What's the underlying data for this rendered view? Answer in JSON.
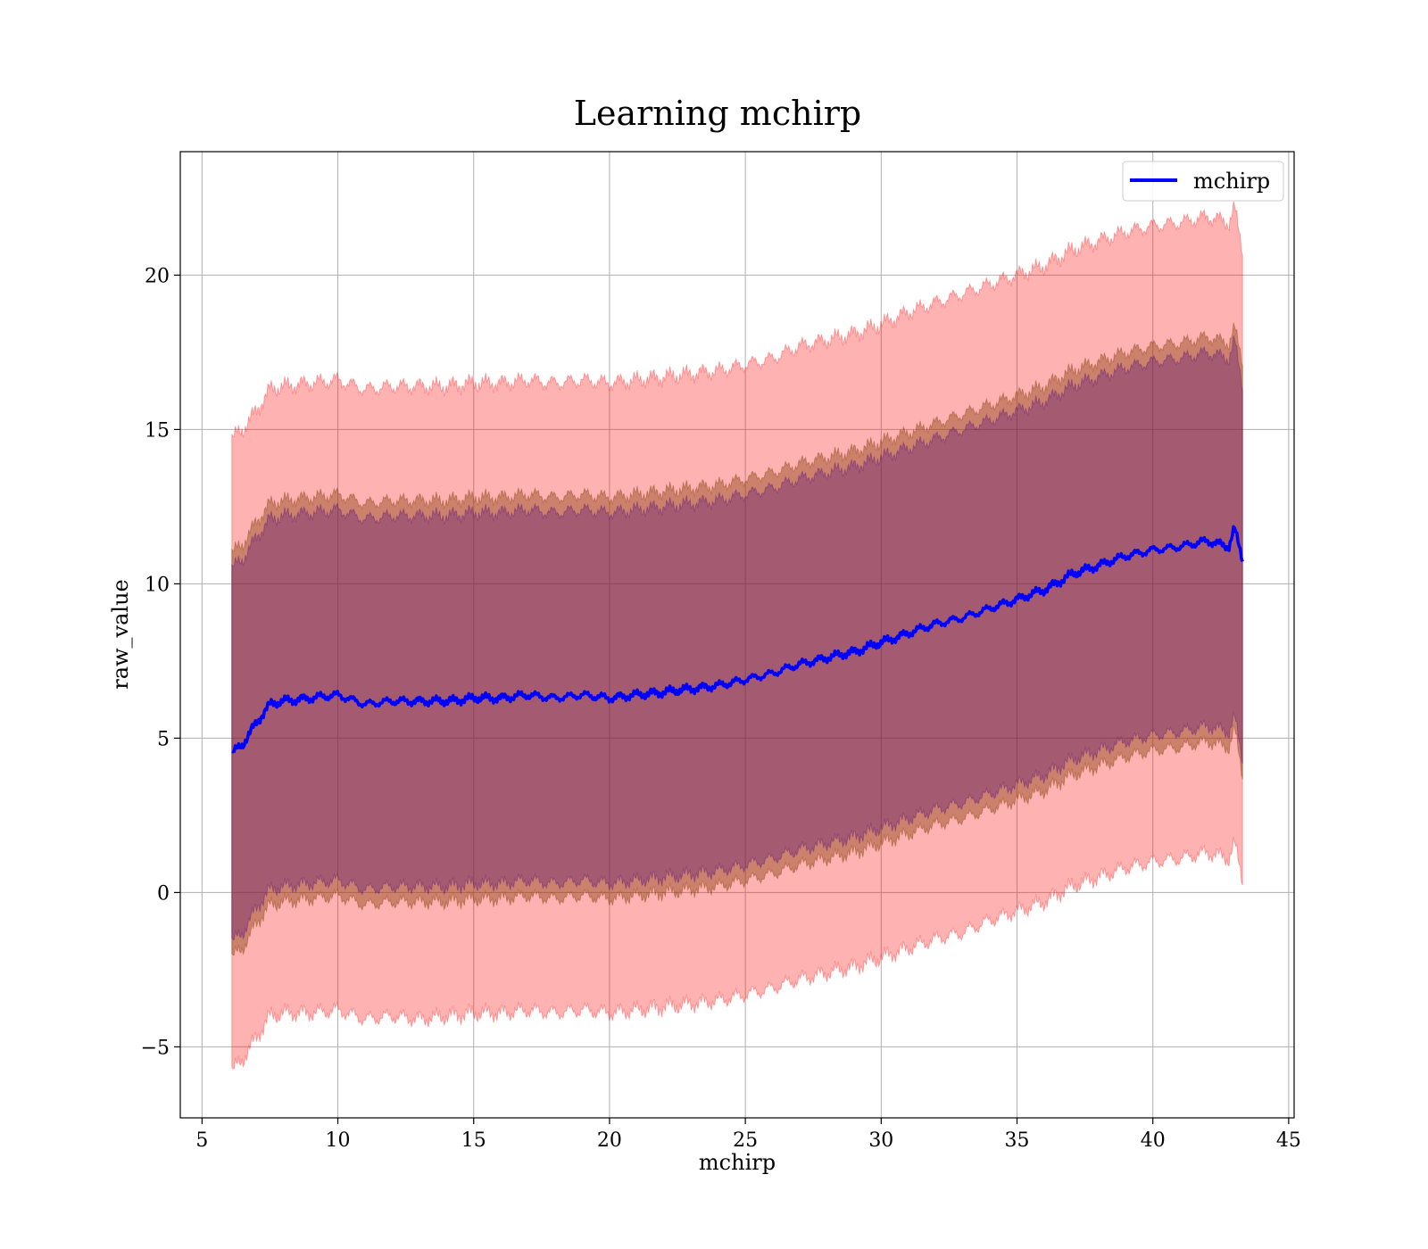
{
  "chart_data": {
    "type": "area",
    "title": "Learning mchirp",
    "xlabel": "mchirp",
    "ylabel": "raw_value",
    "xlim": [
      4.2,
      45.2
    ],
    "ylim": [
      -7.3,
      24.0
    ],
    "xticks": [
      5,
      10,
      15,
      20,
      25,
      30,
      35,
      40,
      45
    ],
    "yticks": [
      -5,
      0,
      5,
      10,
      15,
      20
    ],
    "ytick_labels": [
      "−5",
      "0",
      "5",
      "10",
      "15",
      "20"
    ],
    "grid": true,
    "legend": {
      "placement": "upper right",
      "entries": [
        "mchirp"
      ]
    },
    "colors": {
      "mean": "#0000ff",
      "outer_band": "#ff0000",
      "mid_band": "#8b4513",
      "inner_band": "#4b0082"
    },
    "x": [
      6.1,
      6.5,
      7.0,
      7.5,
      8.0,
      9.0,
      10.0,
      11.0,
      12.0,
      13.0,
      14.0,
      15.0,
      16.0,
      17.0,
      18.0,
      19.0,
      20.0,
      21.0,
      22.0,
      23.0,
      24.0,
      25.0,
      26.0,
      27.0,
      28.0,
      29.0,
      30.0,
      31.0,
      32.0,
      33.0,
      34.0,
      35.0,
      36.0,
      37.0,
      38.0,
      39.0,
      40.0,
      41.0,
      42.0,
      42.8,
      43.0,
      43.3
    ],
    "series": [
      {
        "name": "mchirp",
        "role": "mean",
        "values": [
          4.5,
          4.8,
          5.5,
          6.1,
          6.2,
          6.3,
          6.4,
          6.1,
          6.2,
          6.2,
          6.2,
          6.3,
          6.3,
          6.4,
          6.3,
          6.4,
          6.3,
          6.4,
          6.5,
          6.6,
          6.7,
          6.9,
          7.1,
          7.4,
          7.6,
          7.8,
          8.1,
          8.4,
          8.7,
          8.9,
          9.2,
          9.5,
          9.8,
          10.3,
          10.6,
          10.9,
          11.1,
          11.2,
          11.4,
          11.2,
          11.8,
          10.8
        ]
      },
      {
        "role": "outer_upper",
        "values": [
          14.7,
          15.0,
          15.6,
          16.3,
          16.4,
          16.5,
          16.6,
          16.3,
          16.4,
          16.4,
          16.4,
          16.5,
          16.5,
          16.6,
          16.5,
          16.6,
          16.5,
          16.6,
          16.7,
          16.8,
          16.9,
          17.1,
          17.3,
          17.7,
          17.9,
          18.1,
          18.4,
          18.8,
          19.1,
          19.4,
          19.7,
          20.0,
          20.3,
          20.8,
          21.1,
          21.4,
          21.6,
          21.7,
          21.9,
          21.7,
          22.2,
          20.8
        ]
      },
      {
        "role": "outer_lower",
        "values": [
          -5.8,
          -5.4,
          -4.7,
          -4.0,
          -3.9,
          -3.9,
          -3.8,
          -4.1,
          -4.0,
          -4.1,
          -4.0,
          -3.9,
          -3.9,
          -3.8,
          -3.9,
          -3.8,
          -3.9,
          -3.8,
          -3.7,
          -3.6,
          -3.5,
          -3.3,
          -3.1,
          -2.8,
          -2.6,
          -2.4,
          -2.1,
          -1.8,
          -1.5,
          -1.3,
          -0.9,
          -0.6,
          -0.3,
          0.2,
          0.5,
          0.8,
          1.0,
          1.1,
          1.3,
          1.1,
          1.6,
          0.4
        ]
      },
      {
        "role": "mid_upper",
        "values": [
          11.0,
          11.3,
          12.0,
          12.6,
          12.7,
          12.8,
          12.9,
          12.6,
          12.7,
          12.7,
          12.7,
          12.8,
          12.8,
          12.9,
          12.8,
          12.9,
          12.8,
          12.9,
          13.0,
          13.1,
          13.2,
          13.4,
          13.6,
          13.9,
          14.1,
          14.3,
          14.6,
          14.9,
          15.2,
          15.5,
          15.8,
          16.1,
          16.4,
          16.9,
          17.2,
          17.5,
          17.7,
          17.8,
          18.0,
          17.8,
          18.3,
          17.2
        ]
      },
      {
        "role": "mid_lower",
        "values": [
          -2.1,
          -1.8,
          -1.0,
          -0.4,
          -0.3,
          -0.2,
          -0.1,
          -0.4,
          -0.3,
          -0.3,
          -0.3,
          -0.2,
          -0.2,
          -0.1,
          -0.2,
          -0.1,
          -0.2,
          -0.1,
          0.0,
          0.1,
          0.2,
          0.4,
          0.6,
          0.9,
          1.1,
          1.3,
          1.6,
          1.9,
          2.2,
          2.4,
          2.7,
          3.0,
          3.3,
          3.8,
          4.1,
          4.4,
          4.6,
          4.7,
          4.9,
          4.7,
          5.3,
          3.8
        ]
      },
      {
        "role": "inner_upper",
        "values": [
          10.5,
          10.8,
          11.5,
          12.1,
          12.2,
          12.3,
          12.4,
          12.1,
          12.2,
          12.2,
          12.2,
          12.3,
          12.3,
          12.4,
          12.3,
          12.4,
          12.3,
          12.4,
          12.5,
          12.6,
          12.7,
          12.9,
          13.1,
          13.4,
          13.6,
          13.8,
          14.1,
          14.4,
          14.7,
          15.0,
          15.3,
          15.6,
          15.9,
          16.4,
          16.7,
          17.0,
          17.2,
          17.3,
          17.5,
          17.3,
          17.9,
          16.4
        ]
      },
      {
        "role": "inner_lower",
        "values": [
          -1.6,
          -1.3,
          -0.5,
          0.1,
          0.2,
          0.3,
          0.4,
          0.1,
          0.2,
          0.2,
          0.2,
          0.3,
          0.3,
          0.4,
          0.3,
          0.4,
          0.3,
          0.4,
          0.5,
          0.6,
          0.7,
          0.9,
          1.1,
          1.4,
          1.6,
          1.8,
          2.1,
          2.4,
          2.7,
          2.9,
          3.2,
          3.5,
          3.8,
          4.3,
          4.6,
          4.9,
          5.1,
          5.2,
          5.4,
          5.2,
          5.7,
          4.3
        ]
      }
    ]
  }
}
